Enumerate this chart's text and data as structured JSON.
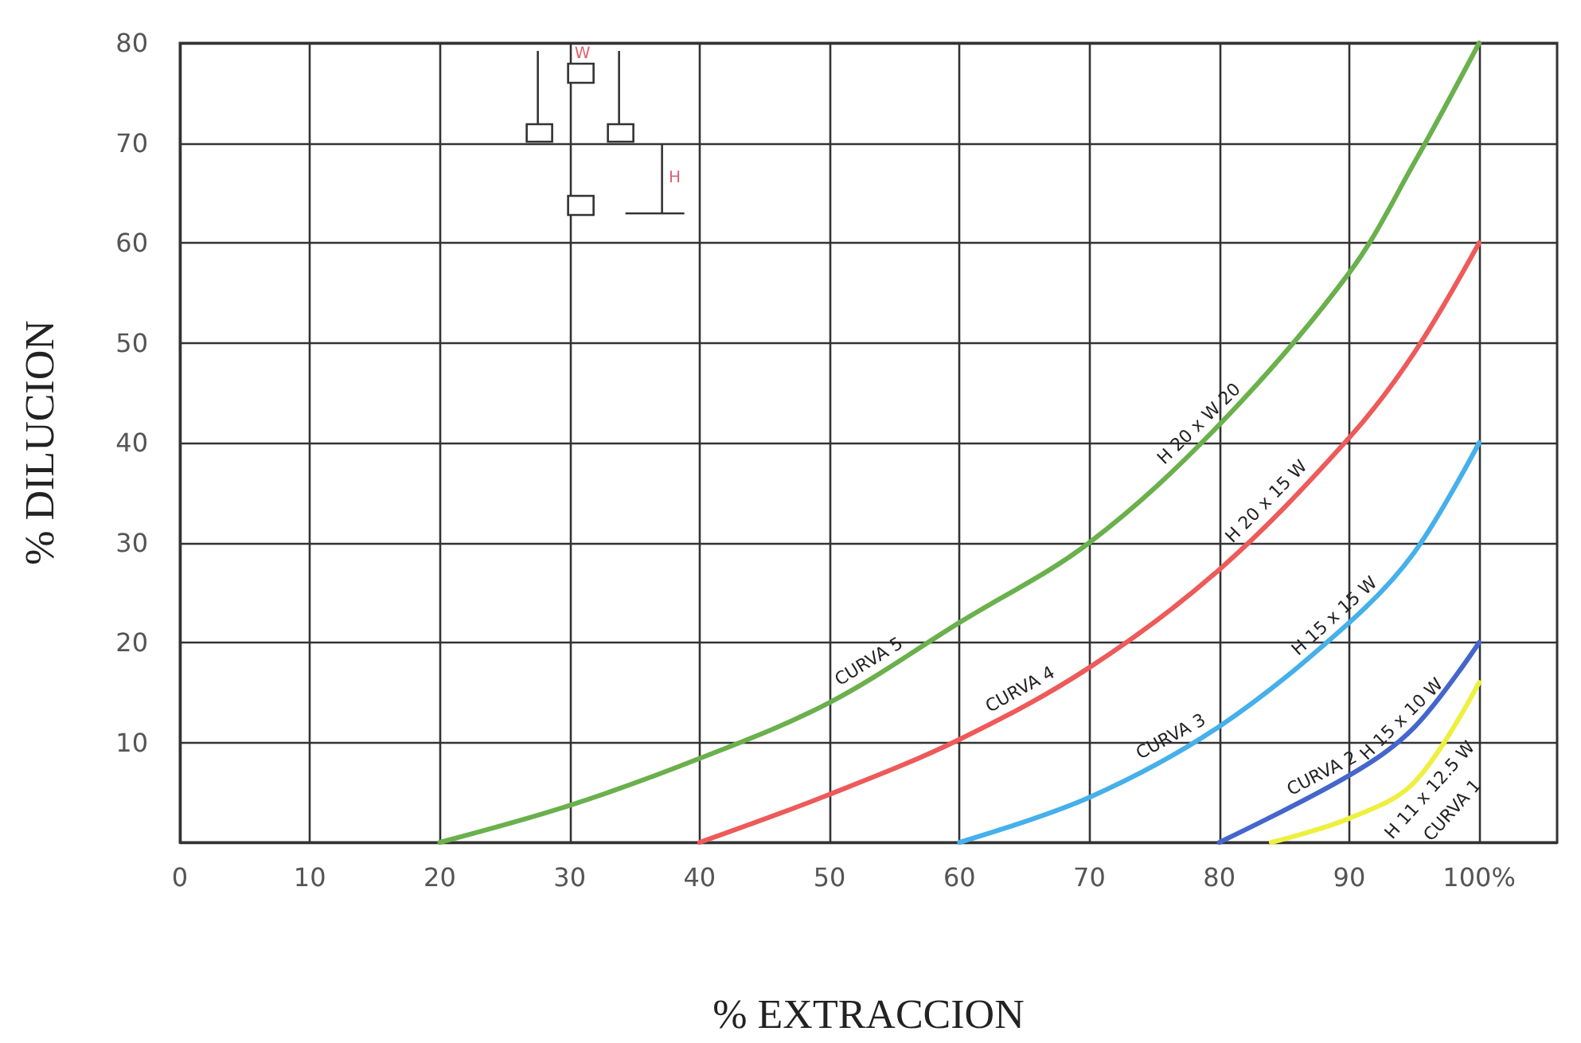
{
  "chart_data": {
    "type": "line",
    "xlabel": "% EXTRACCION",
    "ylabel": "% DILUCION",
    "xlim": [
      0,
      106
    ],
    "xticks": [
      0,
      10,
      20,
      30,
      40,
      50,
      60,
      70,
      80,
      90,
      {
        "value": 100,
        "label": "100%"
      }
    ],
    "ylim": [
      0,
      80
    ],
    "yticks": [
      {
        "value": 0,
        "label": null
      },
      10,
      20,
      30,
      40,
      50,
      60,
      70,
      80
    ],
    "grid": true,
    "marker": "none",
    "line_style": "solid",
    "series": [
      {
        "name": "CURVA 5",
        "color": "#6ab04c",
        "x": [
          20,
          30,
          40,
          50,
          60,
          70,
          80,
          90,
          95,
          100
        ],
        "values": [
          0,
          3.7,
          8.4,
          14,
          22,
          30,
          41.8,
          57,
          68,
          80
        ]
      },
      {
        "name": "CURVA 4",
        "color": "#ee5a5a",
        "x": [
          40,
          50,
          60,
          70,
          80,
          90,
          95,
          100
        ],
        "values": [
          0,
          4.8,
          10.3,
          17.5,
          27.3,
          40.5,
          49,
          60
        ]
      },
      {
        "name": "CURVA 3",
        "color": "#45b0ea",
        "x": [
          60,
          70,
          80,
          90,
          95,
          100
        ],
        "values": [
          0,
          4.5,
          11.6,
          22,
          29,
          40
        ]
      },
      {
        "name": "CURVA 2",
        "color": "#4466cc",
        "x": [
          80,
          90,
          95,
          100
        ],
        "values": [
          0,
          6.7,
          11.5,
          20
        ]
      },
      {
        "name": "CURVA 1",
        "color": "#eef040",
        "x": [
          84,
          90,
          95,
          100
        ],
        "values": [
          0,
          2.4,
          6,
          16
        ]
      }
    ],
    "annotations": [
      "H 20 x W 20",
      "H 20 x 15 W",
      "H 15 x 15 W",
      "H 15 x 10 W",
      "H 11 x 12.5 W",
      "W",
      "H"
    ]
  }
}
